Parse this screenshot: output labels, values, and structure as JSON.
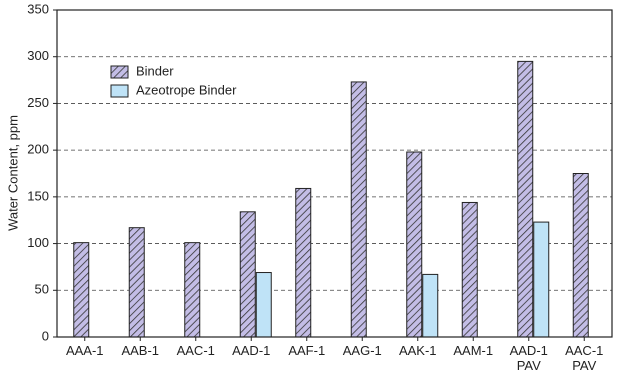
{
  "chart_data": {
    "type": "bar",
    "y_label": "Water Content, ppm",
    "categories": [
      "AAA-1",
      "AAB-1",
      "AAC-1",
      "AAD-1",
      "AAF-1",
      "AAG-1",
      "AAK-1",
      "AAM-1",
      "AAD-1\nPAV",
      "AAC-1\nPAV"
    ],
    "series": [
      {
        "name": "Binder",
        "color": "#c3bde6",
        "hatch": true,
        "values": [
          101,
          117,
          101,
          134,
          159,
          273,
          198,
          144,
          295,
          175
        ]
      },
      {
        "name": "Azeotrope Binder",
        "color": "#bfe3f7",
        "hatch": false,
        "values": [
          null,
          null,
          null,
          69,
          null,
          null,
          67,
          null,
          123,
          null
        ]
      }
    ],
    "ylim": [
      0,
      350
    ],
    "yticks": [
      0,
      50,
      100,
      150,
      200,
      250,
      300,
      350
    ],
    "grid": true
  }
}
